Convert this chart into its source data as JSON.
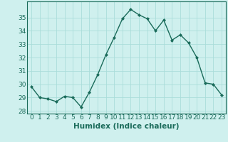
{
  "x": [
    0,
    1,
    2,
    3,
    4,
    5,
    6,
    7,
    8,
    9,
    10,
    11,
    12,
    13,
    14,
    15,
    16,
    17,
    18,
    19,
    20,
    21,
    22,
    23
  ],
  "y": [
    29.8,
    29.0,
    28.9,
    28.7,
    29.1,
    29.0,
    28.3,
    29.4,
    30.7,
    32.2,
    33.5,
    34.9,
    35.6,
    35.2,
    34.9,
    34.0,
    34.8,
    33.3,
    33.7,
    33.1,
    32.0,
    30.1,
    30.0,
    29.2
  ],
  "line_color": "#1a6b5a",
  "marker": "D",
  "marker_size": 2,
  "bg_color": "#cff0ee",
  "grid_color": "#aaddda",
  "xlabel": "Humidex (Indice chaleur)",
  "ylim": [
    27.8,
    36.2
  ],
  "yticks": [
    28,
    29,
    30,
    31,
    32,
    33,
    34,
    35
  ],
  "xticks": [
    0,
    1,
    2,
    3,
    4,
    5,
    6,
    7,
    8,
    9,
    10,
    11,
    12,
    13,
    14,
    15,
    16,
    17,
    18,
    19,
    20,
    21,
    22,
    23
  ],
  "xlabel_fontsize": 7.5,
  "tick_fontsize": 6.5,
  "line_width": 1.0
}
